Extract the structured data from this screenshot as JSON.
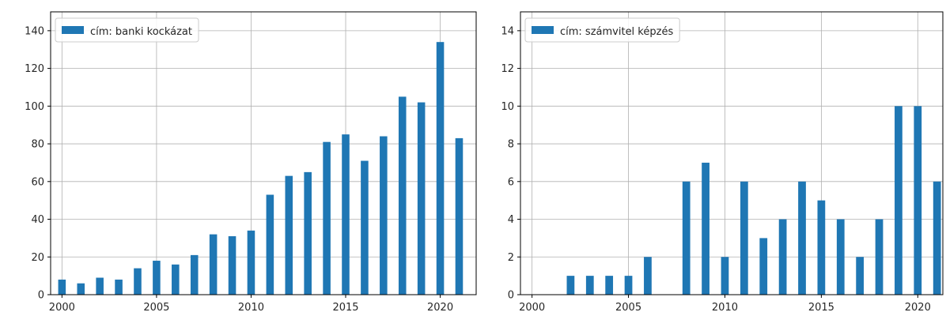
{
  "chart_data": [
    {
      "type": "bar",
      "legend": {
        "label": "cím: banki kockázat",
        "placement": "top-left"
      },
      "x": [
        2000,
        2001,
        2002,
        2003,
        2004,
        2005,
        2006,
        2007,
        2008,
        2009,
        2010,
        2011,
        2012,
        2013,
        2014,
        2015,
        2016,
        2017,
        2018,
        2019,
        2020,
        2021
      ],
      "values": [
        8,
        6,
        9,
        8,
        14,
        18,
        16,
        21,
        32,
        31,
        34,
        53,
        63,
        65,
        81,
        85,
        71,
        84,
        105,
        102,
        134,
        83
      ],
      "xlim": [
        1999.4,
        2021.9
      ],
      "ylim": [
        0,
        150
      ],
      "xticks": [
        "2000",
        "2005",
        "2010",
        "2015",
        "2020"
      ],
      "yticks": [
        "0",
        "20",
        "40",
        "60",
        "80",
        "100",
        "120",
        "140"
      ],
      "grid": true,
      "color": "#1f77b4"
    },
    {
      "type": "bar",
      "legend": {
        "label": "cím: számvitel képzés",
        "placement": "top-left"
      },
      "x": [
        2002,
        2003,
        2004,
        2005,
        2006,
        2008,
        2009,
        2010,
        2011,
        2012,
        2013,
        2014,
        2015,
        2016,
        2017,
        2018,
        2019,
        2020,
        2021
      ],
      "values": [
        1,
        1,
        1,
        1,
        2,
        6,
        7,
        2,
        6,
        3,
        4,
        6,
        5,
        4,
        2,
        4,
        10,
        10,
        6
      ],
      "xlim": [
        1999.4,
        2021.3
      ],
      "ylim": [
        0,
        15
      ],
      "xticks": [
        "2000",
        "2005",
        "2010",
        "2015",
        "2020"
      ],
      "yticks": [
        "0",
        "2",
        "4",
        "6",
        "8",
        "10",
        "12",
        "14"
      ],
      "grid": true,
      "color": "#1f77b4"
    }
  ]
}
